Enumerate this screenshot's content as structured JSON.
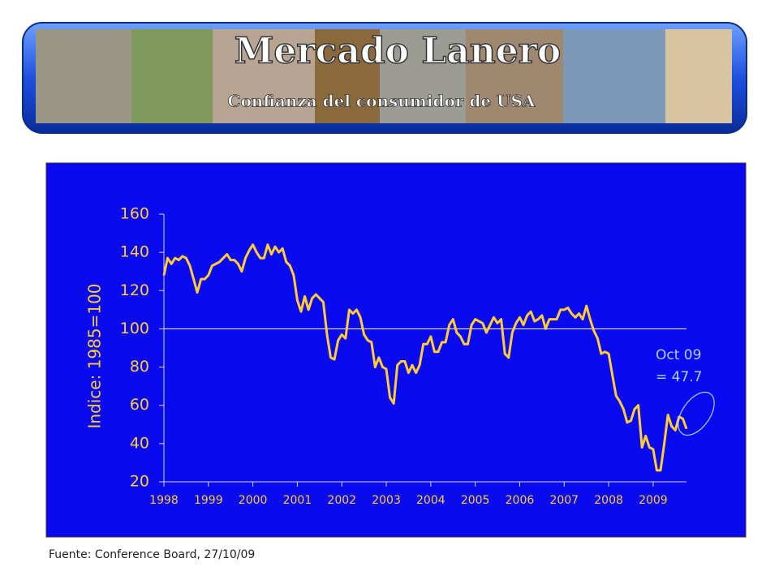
{
  "header": {
    "title": "Mercado Lanero",
    "subtitle": "Confianza del consumidor de USA"
  },
  "source": "Fuente: Conference Board, 27/10/09",
  "chart_data": {
    "type": "line",
    "y_label": "Indice: 1985=100",
    "annotation": [
      "Oct 09",
      "= 47.7"
    ],
    "color": "#ffcc33",
    "reference_line": 100,
    "xlim": [
      1998,
      2009.75
    ],
    "xticks": [
      1998,
      1999,
      2000,
      2001,
      2002,
      2003,
      2004,
      2005,
      2006,
      2007,
      2008,
      2009
    ],
    "ylim": [
      20,
      160
    ],
    "yticks": [
      20,
      40,
      60,
      80,
      100,
      120,
      140,
      160
    ],
    "x": [
      1998,
      1998.083,
      1998.167,
      1998.25,
      1998.333,
      1998.417,
      1998.5,
      1998.583,
      1998.667,
      1998.75,
      1998.833,
      1998.917,
      1999,
      1999.083,
      1999.167,
      1999.25,
      1999.333,
      1999.417,
      1999.5,
      1999.583,
      1999.667,
      1999.75,
      1999.833,
      1999.917,
      2000,
      2000.083,
      2000.167,
      2000.25,
      2000.333,
      2000.417,
      2000.5,
      2000.583,
      2000.667,
      2000.75,
      2000.833,
      2000.917,
      2001,
      2001.083,
      2001.167,
      2001.25,
      2001.333,
      2001.417,
      2001.5,
      2001.583,
      2001.667,
      2001.75,
      2001.833,
      2001.917,
      2002,
      2002.083,
      2002.167,
      2002.25,
      2002.333,
      2002.417,
      2002.5,
      2002.583,
      2002.667,
      2002.75,
      2002.833,
      2002.917,
      2003,
      2003.083,
      2003.167,
      2003.25,
      2003.333,
      2003.417,
      2003.5,
      2003.583,
      2003.667,
      2003.75,
      2003.833,
      2003.917,
      2004,
      2004.083,
      2004.167,
      2004.25,
      2004.333,
      2004.417,
      2004.5,
      2004.583,
      2004.667,
      2004.75,
      2004.833,
      2004.917,
      2005,
      2005.083,
      2005.167,
      2005.25,
      2005.333,
      2005.417,
      2005.5,
      2005.583,
      2005.667,
      2005.75,
      2005.833,
      2005.917,
      2006,
      2006.083,
      2006.167,
      2006.25,
      2006.333,
      2006.417,
      2006.5,
      2006.583,
      2006.667,
      2006.75,
      2006.833,
      2006.917,
      2007,
      2007.083,
      2007.167,
      2007.25,
      2007.333,
      2007.417,
      2007.5,
      2007.583,
      2007.667,
      2007.75,
      2007.833,
      2007.917,
      2008,
      2008.083,
      2008.167,
      2008.25,
      2008.333,
      2008.417,
      2008.5,
      2008.583,
      2008.667,
      2008.75,
      2008.833,
      2008.917,
      2009,
      2009.083,
      2009.167,
      2009.25,
      2009.333,
      2009.417,
      2009.5,
      2009.583,
      2009.667,
      2009.75
    ],
    "values": [
      128,
      137,
      134,
      137,
      136,
      138,
      137,
      133,
      126,
      119,
      126,
      126,
      128,
      133,
      134,
      135,
      137,
      139,
      136,
      136,
      134,
      130,
      137,
      141,
      144,
      140,
      137,
      137,
      144,
      139,
      143,
      140,
      142,
      135,
      133,
      128,
      115,
      109,
      117,
      110,
      116,
      118,
      116,
      114,
      97,
      85,
      84,
      94,
      97,
      95,
      110,
      108,
      110,
      106,
      97,
      94,
      93,
      80,
      85,
      80,
      79,
      64,
      61,
      81,
      83,
      83,
      77,
      81,
      77,
      81,
      92,
      92,
      96,
      88,
      88,
      93,
      93,
      102,
      105,
      98,
      96,
      92,
      92,
      102,
      105,
      104,
      103,
      98,
      102,
      106,
      103,
      105,
      87,
      85,
      98,
      103,
      106,
      102,
      107,
      109,
      104,
      105,
      107,
      100,
      105,
      105,
      105,
      110,
      110,
      111,
      108,
      106,
      108,
      105,
      112,
      105,
      99,
      95,
      87,
      88,
      87,
      76,
      65,
      62,
      58,
      51,
      52,
      58,
      60,
      38,
      44,
      38,
      37,
      26,
      26,
      40,
      55,
      49,
      47,
      54,
      53,
      47.7
    ]
  }
}
